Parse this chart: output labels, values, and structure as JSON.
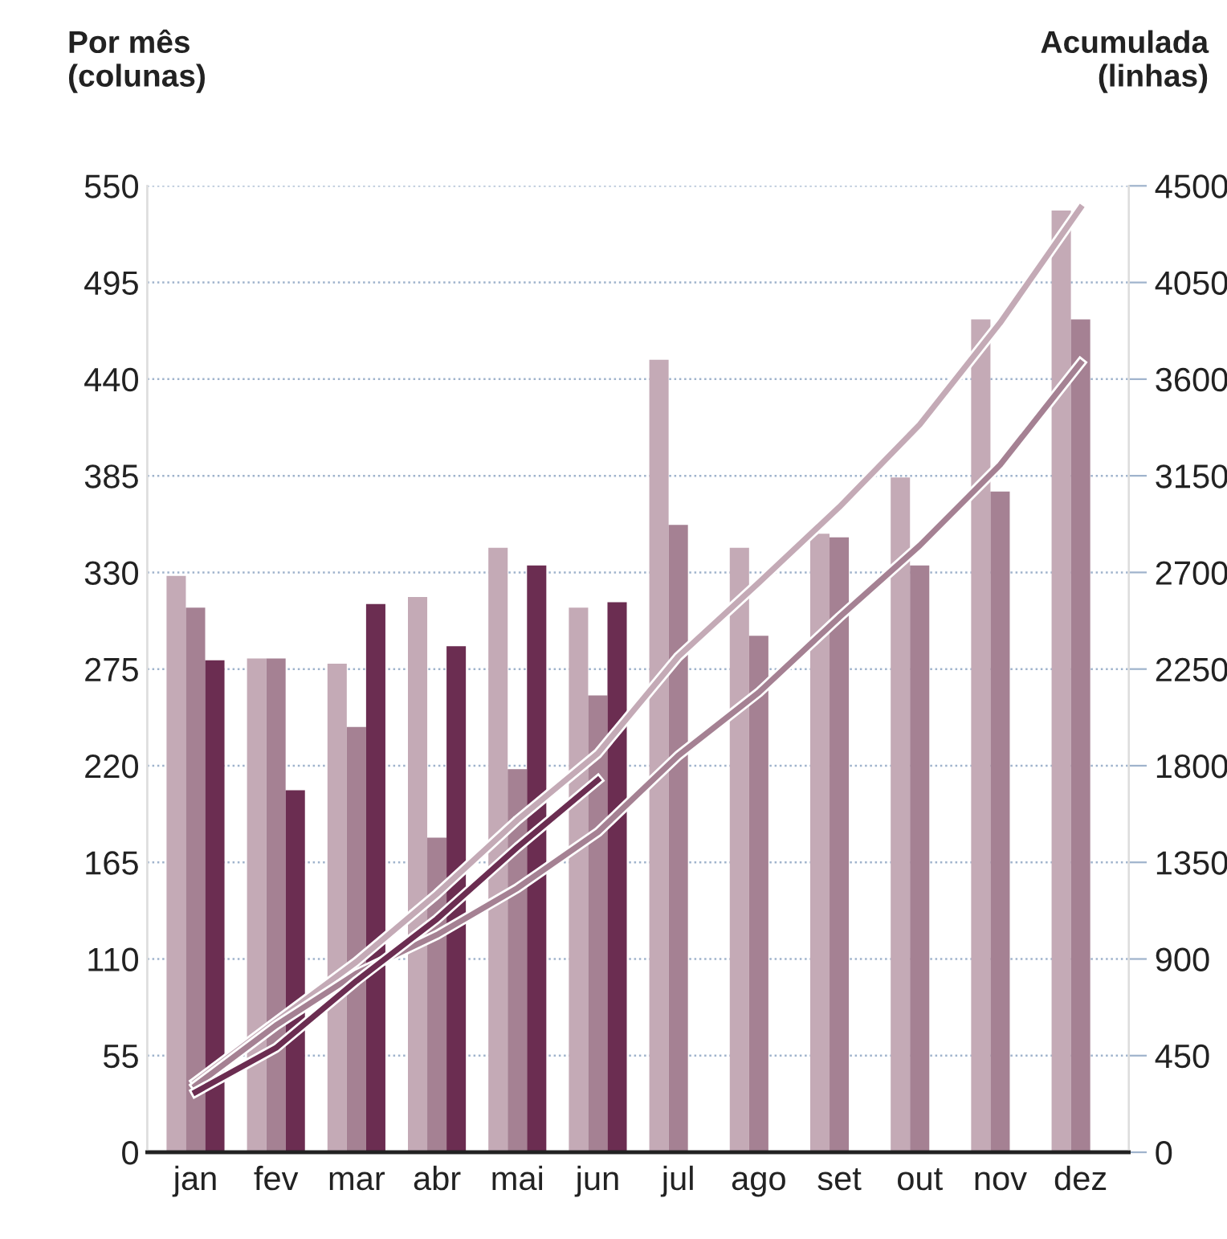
{
  "chart_data": {
    "type": "bar",
    "ylabel": "Por mês\n(colunas)",
    "y2label": "Acumulada\n(linhas)",
    "categories": [
      "jan",
      "fev",
      "mar",
      "abr",
      "mai",
      "jun",
      "jul",
      "ago",
      "set",
      "out",
      "nov",
      "dez"
    ],
    "series": [
      {
        "color": "#c4aab6",
        "values": [
          328,
          281,
          278,
          316,
          344,
          310,
          451,
          344,
          352,
          384,
          474,
          536
        ]
      },
      {
        "color": "#a58193",
        "values": [
          310,
          281,
          242,
          179,
          218,
          260,
          357,
          294,
          350,
          334,
          376,
          474
        ]
      },
      {
        "color": "#6b2d51",
        "values": [
          280,
          206,
          312,
          288,
          334,
          313,
          null,
          null,
          null,
          null,
          null,
          null
        ]
      },
      {
        "type": "line",
        "axis": "y2",
        "color": "#c4aab6",
        "values": [
          328,
          609,
          887,
          1203,
          1547,
          1857,
          2308,
          2652,
          3004,
          3388,
          3862,
          4398
        ]
      },
      {
        "type": "line",
        "axis": "y2",
        "color": "#a58193",
        "values": [
          310,
          591,
          833,
          1012,
          1230,
          1490,
          1847,
          2141,
          2491,
          2825,
          3201,
          3675
        ]
      },
      {
        "type": "line",
        "axis": "y2",
        "color": "#6b2d51",
        "values": [
          280,
          486,
          798,
          1086,
          1420,
          1733,
          null,
          null,
          null,
          null,
          null,
          null
        ]
      }
    ],
    "ylim": [
      0,
      550
    ],
    "yticks": [
      0,
      55,
      110,
      165,
      220,
      275,
      330,
      385,
      440,
      495,
      550
    ],
    "y2lim": [
      0,
      4500
    ],
    "y2ticks": [
      0,
      450,
      900,
      1350,
      1800,
      2250,
      2700,
      3150,
      3600,
      4050,
      4500
    ],
    "grid": "y",
    "legend": false,
    "line_style": "solid",
    "marker": "none"
  }
}
